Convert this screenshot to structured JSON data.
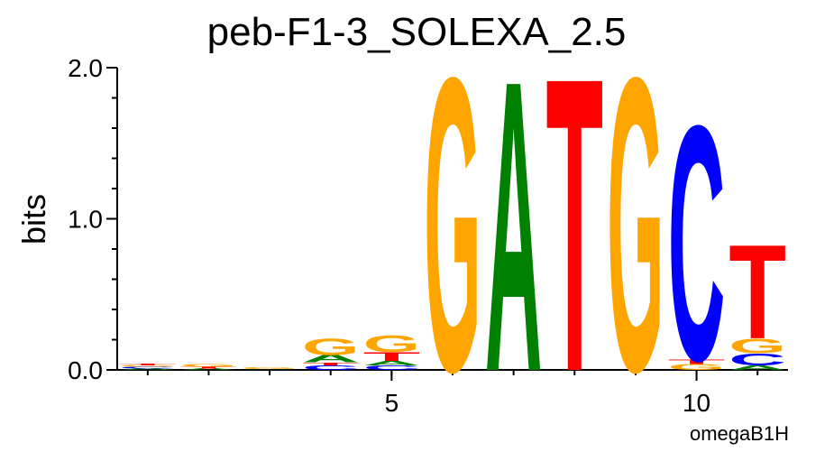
{
  "chart_data": {
    "type": "logo",
    "title": "peb-F1-3_SOLEXA_2.5",
    "ylabel": "bits",
    "xlabel": "omegaB1H",
    "colors": {
      "A": "#008000",
      "C": "#0000ff",
      "G": "#ffa500",
      "T": "#ff0000"
    },
    "xlim": [
      0.5,
      11.5
    ],
    "xticks": [
      5,
      10
    ],
    "xminor_ticks": [
      1,
      2,
      3,
      4,
      5,
      6,
      7,
      8,
      9,
      10,
      11
    ],
    "ylim": [
      0,
      2
    ],
    "yticks": [
      {
        "value": 0,
        "label": "0.0"
      },
      {
        "value": 1,
        "label": "1.0"
      },
      {
        "value": 2,
        "label": "2.0"
      }
    ],
    "yminor_ticks": [
      0.2,
      0.4,
      0.6,
      0.8,
      1.2,
      1.4,
      1.6,
      1.8
    ],
    "positions": [
      {
        "x": 1,
        "letters": [
          {
            "base": "A",
            "height": 0.01
          },
          {
            "base": "C",
            "height": 0.01
          },
          {
            "base": "G",
            "height": 0.01
          },
          {
            "base": "T",
            "height": 0.01
          }
        ]
      },
      {
        "x": 2,
        "letters": [
          {
            "base": "A",
            "height": 0.01
          },
          {
            "base": "T",
            "height": 0.01
          },
          {
            "base": "G",
            "height": 0.02
          }
        ]
      },
      {
        "x": 3,
        "letters": [
          {
            "base": "A",
            "height": 0.005
          },
          {
            "base": "G",
            "height": 0.01
          }
        ]
      },
      {
        "x": 4,
        "letters": [
          {
            "base": "C",
            "height": 0.03
          },
          {
            "base": "T",
            "height": 0.02
          },
          {
            "base": "A",
            "height": 0.05
          },
          {
            "base": "G",
            "height": 0.11
          }
        ]
      },
      {
        "x": 5,
        "letters": [
          {
            "base": "C",
            "height": 0.03
          },
          {
            "base": "A",
            "height": 0.03
          },
          {
            "base": "T",
            "height": 0.06
          },
          {
            "base": "G",
            "height": 0.11
          }
        ]
      },
      {
        "x": 6,
        "letters": [
          {
            "base": "G",
            "height": 2.0
          }
        ]
      },
      {
        "x": 7,
        "letters": [
          {
            "base": "A",
            "height": 1.98
          }
        ]
      },
      {
        "x": 8,
        "letters": [
          {
            "base": "T",
            "height": 2.0
          }
        ]
      },
      {
        "x": 9,
        "letters": [
          {
            "base": "G",
            "height": 2.0
          }
        ]
      },
      {
        "x": 10,
        "letters": [
          {
            "base": "G",
            "height": 0.04
          },
          {
            "base": "T",
            "height": 0.03
          },
          {
            "base": "C",
            "height": 1.6
          }
        ]
      },
      {
        "x": 11,
        "letters": [
          {
            "base": "A",
            "height": 0.03
          },
          {
            "base": "C",
            "height": 0.08
          },
          {
            "base": "G",
            "height": 0.1
          },
          {
            "base": "T",
            "height": 0.64
          }
        ]
      }
    ]
  }
}
